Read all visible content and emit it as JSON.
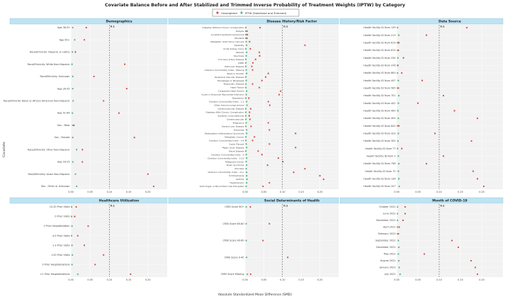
{
  "title": "Covariate Balance Before and After Stabilized and Trimmed Inverse Probability of Treatment Weights (IPTW) by Category",
  "legend": [
    {
      "label": "Unweighted",
      "color": "#d9534f"
    },
    {
      "label": "IPTW (Stabilized and Trimmed)",
      "color": "#5cb88a"
    }
  ],
  "y_axis_label": "Covariate",
  "x_axis_label": "Absolute Standardized Mean Difference (SMD)",
  "threshold_label": "0.1",
  "colors": {
    "unweighted": "#d9534f",
    "iptw": "#5cb88a",
    "header_bg": "#bfe3f2",
    "panel_bg": "#f2f2f2",
    "grid": "#e6e6e6"
  },
  "chart_data": [
    {
      "type": "scatter",
      "panel": "Demographics",
      "xlim": [
        0,
        0.25
      ],
      "ticks": [
        0.0,
        0.05,
        0.1,
        0.15,
        0.2
      ],
      "threshold": 0.1,
      "series": [
        {
          "name": "Unweighted"
        },
        {
          "name": "IPTW (Stabilized and Trimmed)"
        }
      ],
      "rows": [
        {
          "label": "Age 36-50",
          "unweighted": 0.04,
          "iptw": 0.005
        },
        {
          "label": "Age 65+",
          "unweighted": 0.035,
          "iptw": 0.01
        },
        {
          "label": "Race/Ethnicity: Hispanic or Latino",
          "unweighted": 0.012,
          "iptw": 0.004
        },
        {
          "label": "Race/Ethnicity: White Non-Hispanic",
          "unweighted": 0.14,
          "iptw": 0.003
        },
        {
          "label": "Race/Ethnicity: Unknown",
          "unweighted": 0.06,
          "iptw": 0.005
        },
        {
          "label": "Age 26-35",
          "unweighted": 0.145,
          "iptw": 0.005
        },
        {
          "label": "Race/Ethnicity: Black or African American Non-Hispanic",
          "unweighted": 0.085,
          "iptw": 0.006
        },
        {
          "label": "Age 51-64",
          "unweighted": 0.125,
          "iptw": 0.004
        },
        {
          "label": "Sex - Male",
          "unweighted": 0.008,
          "iptw": 0.005
        },
        {
          "label": "Sex - Female",
          "unweighted": 0.165,
          "iptw": 0.005
        },
        {
          "label": "Race/Ethnicity: Other Non-Hispanic",
          "unweighted": 0.03,
          "iptw": 0.015
        },
        {
          "label": "Age 18-25",
          "unweighted": 0.03,
          "iptw": 0.005
        },
        {
          "label": "Race/Ethnicity: Asian Non-Hispanic",
          "unweighted": 0.2,
          "iptw": 0.012
        },
        {
          "label": "Sex - Other or Unknown",
          "unweighted": 0.215,
          "iptw": 0.015
        }
      ]
    },
    {
      "type": "scatter",
      "panel": "Disease History/Risk Factor",
      "xlim": [
        0,
        0.25
      ],
      "ticks": [
        0.0,
        0.05,
        0.1,
        0.15,
        0.2
      ],
      "threshold": 0.1,
      "series": [
        {
          "name": "Unweighted"
        },
        {
          "name": "IPTW (Stabilized and Trimmed)"
        }
      ],
      "rows": [
        {
          "label": "Diabetes Without Chronic Complication",
          "unweighted": 0.04,
          "iptw": 0.002
        },
        {
          "label": "Dialysis",
          "unweighted": 0.005,
          "iptw": 0.002
        },
        {
          "label": "Localized Leukemia Lymphoma",
          "unweighted": 0.006,
          "iptw": 0.002
        },
        {
          "label": "HIV/AIDS",
          "unweighted": 0.005,
          "iptw": 0.002
        },
        {
          "label": "Metastatic Solid Tumor Cancers",
          "unweighted": 0.012,
          "iptw": 0.003
        },
        {
          "label": "Disability",
          "unweighted": 0.16,
          "iptw": 0.004
        },
        {
          "label": "Acute Kidney Injury",
          "unweighted": 0.014,
          "iptw": 0.002
        },
        {
          "label": "Obesity",
          "unweighted": 0.038,
          "iptw": 0.004
        },
        {
          "label": "Psychosis",
          "unweighted": 0.039,
          "iptw": 0.003
        },
        {
          "label": "Coronary Artery Disease",
          "unweighted": 0.028,
          "iptw": 0.002
        },
        {
          "label": "COPD",
          "unweighted": 0.021,
          "iptw": 0.002
        },
        {
          "label": "Mild Liver Disease",
          "unweighted": 0.018,
          "iptw": 0.002
        },
        {
          "label": "Charlson Comorbidity Index - Missing",
          "unweighted": 0.02,
          "iptw": 0.003
        },
        {
          "label": "Tobacco Smoker",
          "unweighted": 0.062,
          "iptw": 0.004
        },
        {
          "label": "Peripheral Vascular Disease",
          "unweighted": 0.055,
          "iptw": 0.002
        },
        {
          "label": "Hemiplegia or Paraplegia",
          "unweighted": 0.045,
          "iptw": 0.003
        },
        {
          "label": "Rheumatic Disease",
          "unweighted": 0.02,
          "iptw": 0.002
        },
        {
          "label": "Heart Failure",
          "unweighted": 0.038,
          "iptw": 0.002
        },
        {
          "label": "Congestive Heart Failure",
          "unweighted": 0.095,
          "iptw": 0.004
        },
        {
          "label": "Acute or Historical Myocardial Infarction",
          "unweighted": 0.091,
          "iptw": 0.003
        },
        {
          "label": "Depression",
          "unweighted": 0.01,
          "iptw": 0.002
        },
        {
          "label": "Charlson Comorbidity Index - 1-2",
          "unweighted": 0.062,
          "iptw": 0.004
        },
        {
          "label": "Other Immunocompromised",
          "unweighted": 0.066,
          "iptw": 0.005
        },
        {
          "label": "Cerebrovascular Disease",
          "unweighted": 0.015,
          "iptw": 0.002
        },
        {
          "label": "Diabetes With Chronic Complication",
          "unweighted": 0.012,
          "iptw": 0.002
        },
        {
          "label": "Systemic Corticosteroids",
          "unweighted": 0.011,
          "iptw": 0.002
        },
        {
          "label": "Cerebrovascular",
          "unweighted": 0.013,
          "iptw": 0.002
        },
        {
          "label": "Pregnancy",
          "unweighted": 0.062,
          "iptw": 0.003
        },
        {
          "label": "Severe Liver Disease",
          "unweighted": 0.016,
          "iptw": 0.002
        },
        {
          "label": "Dementia",
          "unweighted": 0.065,
          "iptw": 0.004
        },
        {
          "label": "Multisystem Inflammatory Syndrome",
          "unweighted": 0.135,
          "iptw": 0.004
        },
        {
          "label": "Metastatic Cancer",
          "unweighted": 0.025,
          "iptw": 0.002
        },
        {
          "label": "Charlson Comorbidity Index - 3-4",
          "unweighted": 0.02,
          "iptw": 0.002
        },
        {
          "label": "Cystic Fibrosis",
          "unweighted": 0.065,
          "iptw": 0.003
        },
        {
          "label": "Peptic Ulcer Disease",
          "unweighted": 0.135,
          "iptw": 0.004
        },
        {
          "label": "Renal Disease",
          "unweighted": 0.035,
          "iptw": 0.002
        },
        {
          "label": "Charlson Comorbidity Index - 0",
          "unweighted": 0.045,
          "iptw": 0.003
        },
        {
          "label": "Charlson Comorbidity Index - 5-10",
          "unweighted": 0.089,
          "iptw": 0.004
        },
        {
          "label": "Malignant Cancer",
          "unweighted": 0.101,
          "iptw": 0.003
        },
        {
          "label": "Down Syndrome",
          "unweighted": 0.06,
          "iptw": 0.004
        },
        {
          "label": "Psoriasis",
          "unweighted": 0.16,
          "iptw": 0.003
        },
        {
          "label": "Charlson Comorbidity Index - 11+",
          "unweighted": 0.13,
          "iptw": 0.004
        },
        {
          "label": "Schizophrenia",
          "unweighted": 0.2,
          "iptw": 0.004
        },
        {
          "label": "Asthma",
          "unweighted": 0.21,
          "iptw": 0.005
        },
        {
          "label": "Hypertension",
          "unweighted": 0.065,
          "iptw": 0.004
        },
        {
          "label": "Solid Organ or Blood Stem Cell Transplant",
          "unweighted": 0.048,
          "iptw": 0.003
        }
      ]
    },
    {
      "type": "scatter",
      "panel": "Data Source",
      "xlim": [
        0,
        0.25
      ],
      "ticks": [
        0.0,
        0.05,
        0.1,
        0.15,
        0.2
      ],
      "threshold": 0.1,
      "series": [
        {
          "name": "Unweighted"
        },
        {
          "name": "IPTW (Stabilized and Trimmed)"
        }
      ],
      "rows": [
        {
          "label": "Health Facility ID Num 139",
          "unweighted": 0.165,
          "iptw": 0.002
        },
        {
          "label": "Health Facility ID Num 213",
          "unweighted": 0.07,
          "iptw": 0.005
        },
        {
          "label": "Health Facility ID Num 619",
          "unweighted": 0.005,
          "iptw": 0.002
        },
        {
          "label": "Health Facility ID Num 815",
          "unweighted": 0.004,
          "iptw": 0.002
        },
        {
          "label": "Health Facility ID Num 234",
          "unweighted": 0.016,
          "iptw": 0.003
        },
        {
          "label": "Health Facility ID Num 376",
          "unweighted": 0.003,
          "iptw": 0.002
        },
        {
          "label": "Health Facility ID Num 663",
          "unweighted": 0.012,
          "iptw": 0.002
        },
        {
          "label": "Health Facility ID Num 497",
          "unweighted": 0.06,
          "iptw": 0.004
        },
        {
          "label": "Health Facility ID Num 565",
          "unweighted": 0.004,
          "iptw": 0.002
        },
        {
          "label": "Health Facility ID Num 701",
          "unweighted": 0.11,
          "iptw": 0.005
        },
        {
          "label": "Health Facility ID Num 402",
          "unweighted": 0.05,
          "iptw": 0.004
        },
        {
          "label": "Health Facility ID Num 400",
          "unweighted": 0.136,
          "iptw": 0.003
        },
        {
          "label": "Health Facility ID Num 405",
          "unweighted": 0.19,
          "iptw": 0.004
        },
        {
          "label": "Health Facility ID Num 820",
          "unweighted": 0.005,
          "iptw": 0.002
        },
        {
          "label": "Health Facility ID Num 323",
          "unweighted": 0.09,
          "iptw": 0.004
        },
        {
          "label": "Health Facility ID Num 305",
          "unweighted": 0.176,
          "iptw": 0.003
        },
        {
          "label": "Health Facility ID Num 77",
          "unweighted": 0.012,
          "iptw": 0.002
        },
        {
          "label": "Health Facility ID Num 5",
          "unweighted": 0.11,
          "iptw": 0.004
        },
        {
          "label": "Health Facility ID Num 798",
          "unweighted": 0.07,
          "iptw": 0.005
        },
        {
          "label": "Health Facility ID Num 75",
          "unweighted": 0.18,
          "iptw": 0.004
        },
        {
          "label": "Health Facility ID Num 136",
          "unweighted": 0.19,
          "iptw": 0.005
        },
        {
          "label": "Health Facility ID Num 207",
          "unweighted": 0.205,
          "iptw": 0.006
        }
      ]
    },
    {
      "type": "scatter",
      "panel": "Healthcare Utilization",
      "xlim": [
        0,
        0.25
      ],
      "ticks": [
        0.0,
        0.05,
        0.1,
        0.15,
        0.2
      ],
      "threshold": 0.1,
      "series": [
        {
          "name": "Unweighted"
        },
        {
          "name": "IPTW (Stabilized and Trimmed)"
        }
      ],
      "rows": [
        {
          "label": "10-20 Prior Visits",
          "unweighted": 0.014,
          "iptw": 0.002
        },
        {
          "label": "0 Prior Visits",
          "unweighted": 0.01,
          "iptw": 0.002
        },
        {
          "label": "1 Prior Hospitalization",
          "unweighted": 0.045,
          "iptw": 0.003
        },
        {
          "label": "4-9 Prior Visits",
          "unweighted": 0.018,
          "iptw": 0.002
        },
        {
          "label": "1-3 Prior Visits",
          "unweighted": 0.035,
          "iptw": 0.003
        },
        {
          "label": ">20 Prior Visits",
          "unweighted": 0.085,
          "iptw": 0.004
        },
        {
          "label": "0 Prior Hospitalizations",
          "unweighted": 0.063,
          "iptw": 0.003
        },
        {
          "label": ">1 Prior Hospitalizations",
          "unweighted": 0.155,
          "iptw": 0.018
        }
      ]
    },
    {
      "type": "scatter",
      "panel": "Social Determinants of Health",
      "xlim": [
        0,
        0.25
      ],
      "ticks": [
        0.0,
        0.05,
        0.1,
        0.15,
        0.2
      ],
      "threshold": 0.1,
      "series": [
        {
          "name": "Unweighted"
        },
        {
          "name": "IPTW (Stabilized and Trimmed)"
        }
      ],
      "rows": [
        {
          "label": "CMSI Score 80+",
          "unweighted": 0.014,
          "iptw": 0.003
        },
        {
          "label": "CMSI Score 60-80",
          "unweighted": 0.065,
          "iptw": 0.003
        },
        {
          "label": "CMSI Score 40-60",
          "unweighted": 0.048,
          "iptw": 0.003
        },
        {
          "label": "CMSI Score 0-40",
          "unweighted": 0.114,
          "iptw": 0.004
        },
        {
          "label": "CMSI Score Missing",
          "unweighted": 0.015,
          "iptw": 0.006
        }
      ]
    },
    {
      "type": "scatter",
      "panel": "Month of COVID-19",
      "xlim": [
        0,
        0.25
      ],
      "ticks": [
        0.0,
        0.05,
        0.1,
        0.15,
        0.2
      ],
      "threshold": 0.1,
      "series": [
        {
          "name": "Unweighted"
        },
        {
          "name": "IPTW (Stabilized and Trimmed)"
        }
      ],
      "rows": [
        {
          "label": "October 2022",
          "unweighted": 0.02,
          "iptw": 0.002
        },
        {
          "label": "June 2022",
          "unweighted": 0.02,
          "iptw": 0.002
        },
        {
          "label": "November 2022",
          "unweighted": 0.015,
          "iptw": 0.002
        },
        {
          "label": "April 2022",
          "unweighted": 0.006,
          "iptw": 0.002
        },
        {
          "label": "February 2023",
          "unweighted": 0.004,
          "iptw": 0.002
        },
        {
          "label": "September 2022",
          "unweighted": 0.13,
          "iptw": 0.004
        },
        {
          "label": "December 2022",
          "unweighted": 0.145,
          "iptw": 0.005
        },
        {
          "label": "May 2022",
          "unweighted": 0.065,
          "iptw": 0.004
        },
        {
          "label": "August 2022",
          "unweighted": 0.175,
          "iptw": 0.005
        },
        {
          "label": "January 2023",
          "unweighted": 0.185,
          "iptw": 0.006
        },
        {
          "label": "July 2022",
          "unweighted": 0.19,
          "iptw": 0.008
        }
      ]
    }
  ]
}
